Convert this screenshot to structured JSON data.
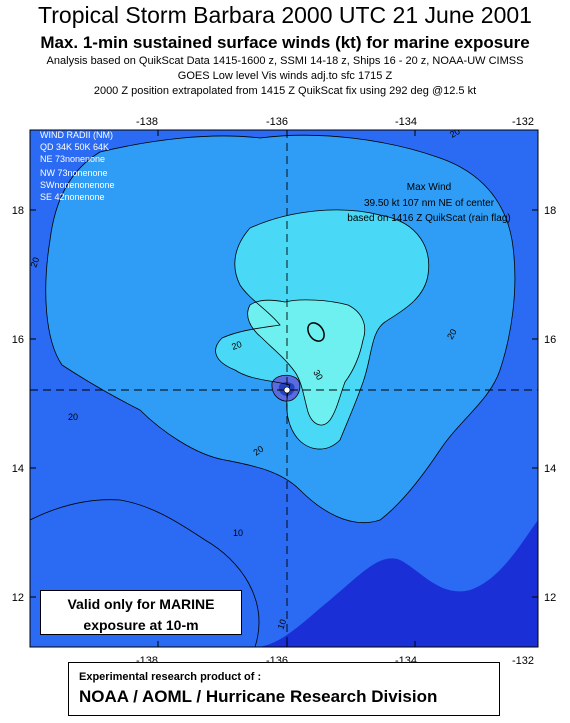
{
  "title": "Tropical Storm Barbara 2000 UTC 21 June 2001",
  "subtitle": "Max. 1-min sustained surface winds (kt) for marine exposure",
  "analysis_line": "Analysis based on QuikScat Data 1415-1600 z, SSMI 14-18 z, Ships 16 - 20 z,  NOAA-UW CIMSS",
  "goes_line": "GOES Low level Vis winds adj.to sfc  1715 Z",
  "position_line": "2000 Z position extrapolated from 1415 Z QuikScat fix using 292 deg @12.5 kt",
  "x_axis_ticks": [
    "-138",
    "-136",
    "-134",
    "-132"
  ],
  "y_axis_ticks": [
    "18",
    "16",
    "14",
    "12"
  ],
  "wind_radii": {
    "title": "WIND RADII (NM)",
    "header": "QD  34K  50K  64K",
    "rows": [
      "NE   73nonenone",
      "NW   73nonenone",
      "SWnonenonenone",
      "SE   42nonenone"
    ]
  },
  "max_wind": {
    "title": "Max Wind",
    "line1": "39.50 kt  107 nm NE of center",
    "line2": "based on 1416 Z QuikScat (rain flag)"
  },
  "contour_labels": [
    "20",
    "20",
    "20",
    "20",
    "30",
    "20",
    "20",
    "10",
    "10"
  ],
  "valid_box": {
    "line1": "Valid only for MARINE",
    "line2": "exposure at 10-m"
  },
  "credit": {
    "line1": "Experimental research product of :",
    "line2": "NOAA / AOML / Hurricane Research Division"
  },
  "colors": {
    "level_0": "#1a2fd6",
    "level_10": "#2b6af2",
    "level_20": "#2f9df5",
    "level_30": "#49d9f7",
    "level_35": "#6ff0f0",
    "center_core": "#2342c0"
  },
  "center_icon": "storm-center-icon"
}
